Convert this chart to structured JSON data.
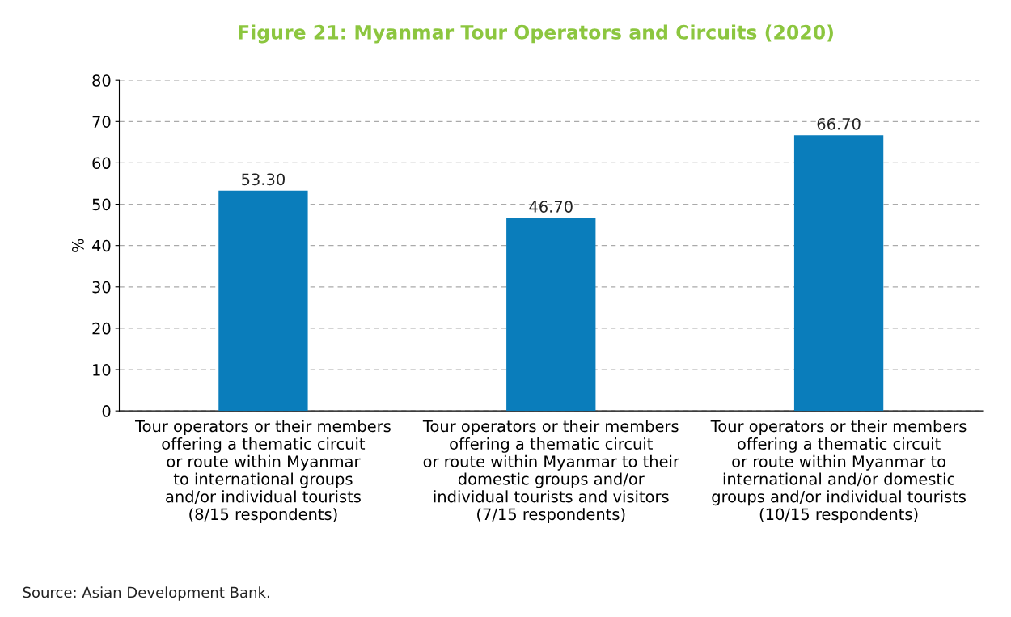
{
  "chart_data": {
    "type": "bar",
    "title": "Figure 21: Myanmar Tour Operators and Circuits (2020)",
    "ylabel": "%",
    "categories": [
      "Tour operators or their members\noffering a thematic circuit\nor route within Myanmar\nto international groups\nand/or individual tourists\n(8/15 respondents)",
      "Tour operators or their members\noffering a thematic circuit\nor route within Myanmar to their\ndomestic groups and/or\nindividual tourists and visitors\n(7/15 respondents)",
      "Tour operators or their members\noffering a thematic circuit\nor route within Myanmar to\ninternational and/or domestic\ngroups and/or individual tourists\n(10/15 respondents)"
    ],
    "values": [
      53.3,
      46.7,
      66.7
    ],
    "value_labels": [
      "53.30",
      "46.70",
      "66.70"
    ],
    "color": "#0a7dbb",
    "ylim": [
      0,
      80
    ],
    "yticks": [
      0,
      10,
      20,
      30,
      40,
      50,
      60,
      70,
      80
    ],
    "grid": "y",
    "annotations": [
      "Source: Asian Development Bank."
    ]
  }
}
